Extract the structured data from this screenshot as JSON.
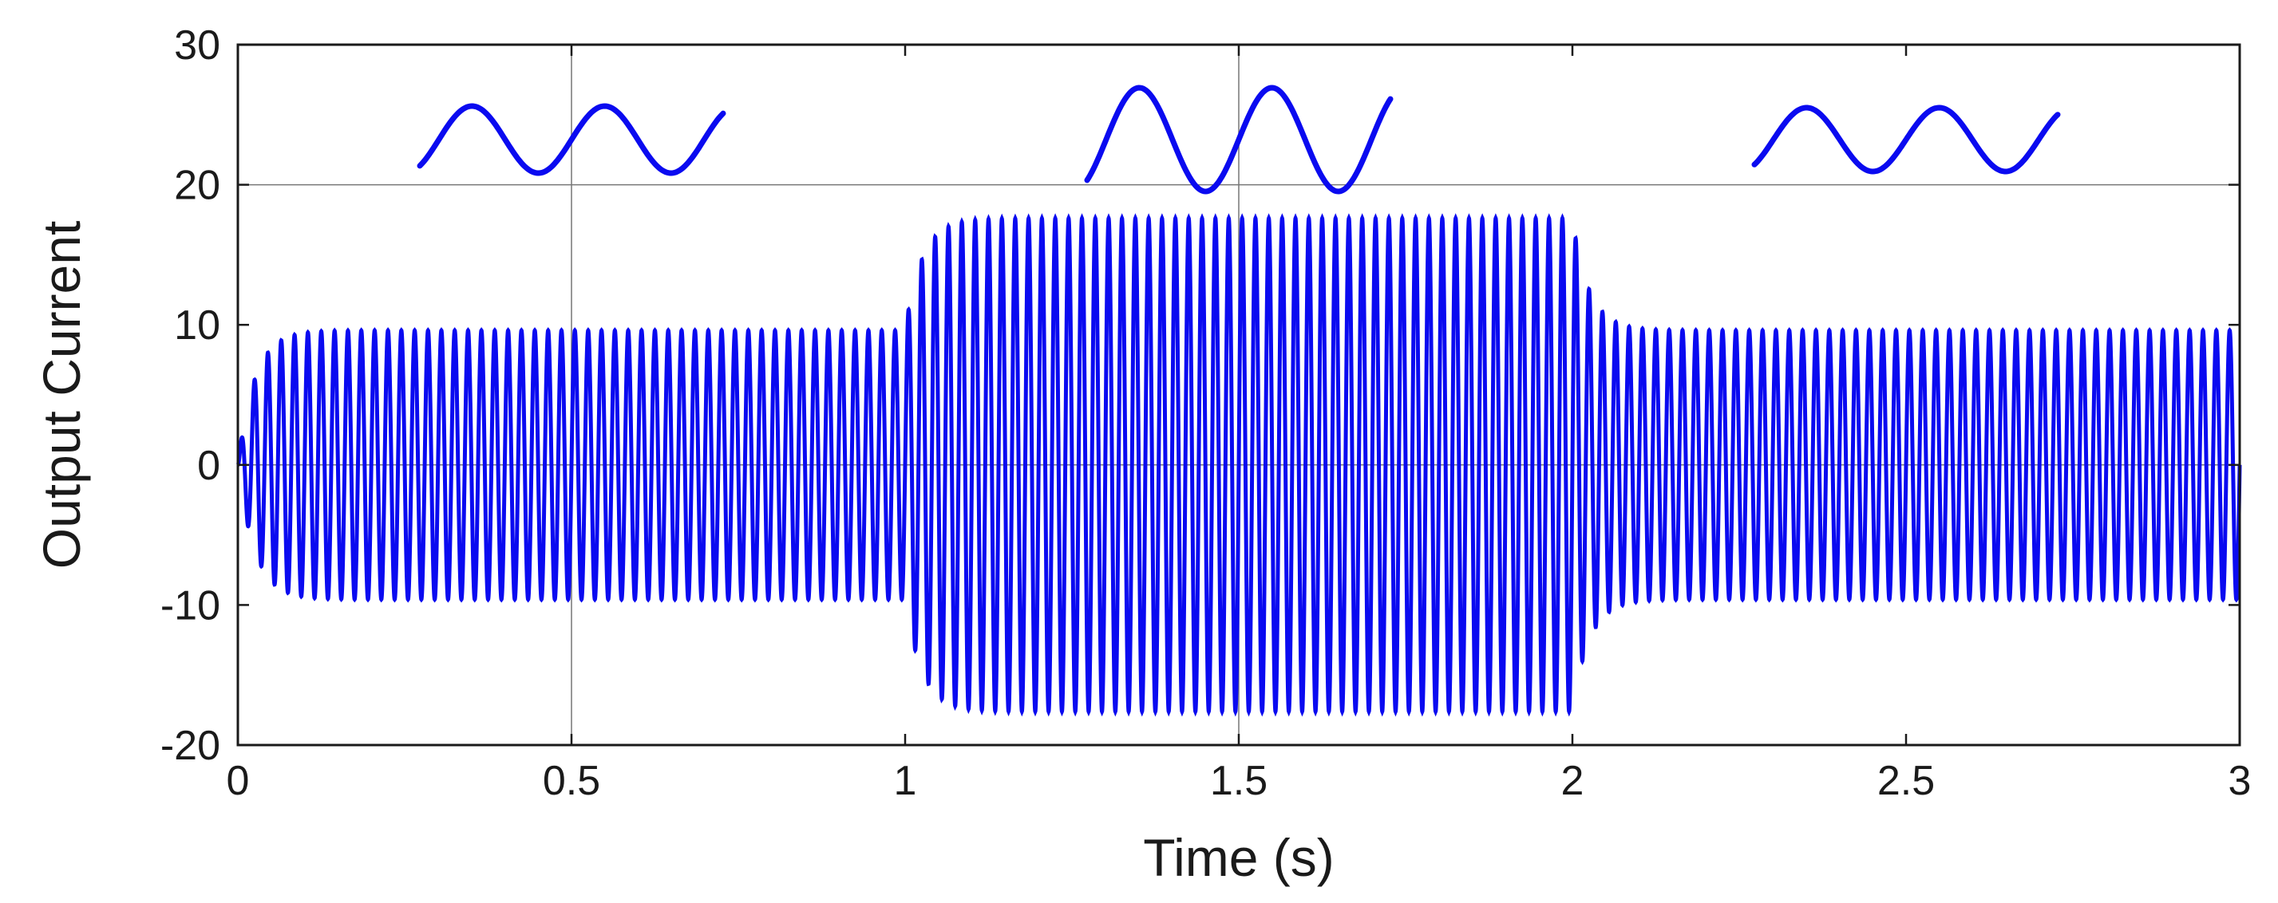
{
  "chart_data": {
    "type": "line",
    "title": "",
    "xlabel": "Time (s)",
    "ylabel": "Output Current",
    "xlim": [
      0,
      3
    ],
    "ylim": [
      -20,
      30
    ],
    "xticks": [
      0,
      0.5,
      1,
      1.5,
      2,
      2.5,
      3
    ],
    "xtick_labels": [
      "0",
      "0.5",
      "1",
      "1.5",
      "2",
      "2.5",
      "3"
    ],
    "yticks": [
      -20,
      -10,
      0,
      10,
      20,
      30
    ],
    "ytick_labels": [
      "-20",
      "-10",
      "0",
      "10",
      "20",
      "30"
    ],
    "grid": "horizontal lines at 0 and 20, vertical lines at 0.5 and 1.5",
    "legend": "none",
    "series": [
      {
        "color": "#0a0af0",
        "signal": "sinusoid",
        "frequency_hz": 50,
        "segments": [
          {
            "t_start": 0,
            "t_end": 1,
            "steady_amplitude": 9.6
          },
          {
            "t_start": 1,
            "t_end": 2,
            "steady_amplitude": 17.6
          },
          {
            "t_start": 2,
            "t_end": 3,
            "steady_amplitude": 9.6
          }
        ]
      }
    ],
    "insets": [
      {
        "region": "0–1 s",
        "shape": "sine",
        "relative_amplitude": "medium"
      },
      {
        "region": "1–2 s",
        "shape": "sine",
        "relative_amplitude": "large"
      },
      {
        "region": "2–3 s",
        "shape": "sine",
        "relative_amplitude": "medium"
      }
    ]
  }
}
